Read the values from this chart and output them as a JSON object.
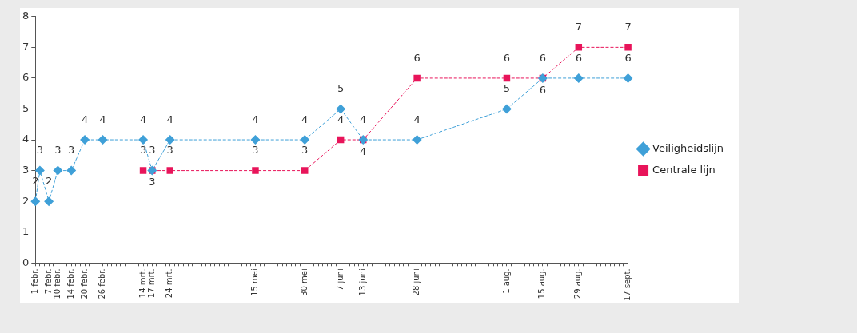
{
  "chart_data": {
    "type": "line",
    "categories": [
      "1 febr.",
      null,
      null,
      "7 febr.",
      null,
      "10 febr.",
      null,
      null,
      "14 febr.",
      null,
      null,
      "20 febr.",
      null,
      null,
      null,
      "26 febr.",
      null,
      null,
      null,
      null,
      null,
      null,
      null,
      null,
      "14 mrt.",
      null,
      "17 mrt.",
      null,
      null,
      null,
      "24 mrt.",
      null,
      null,
      null,
      null,
      null,
      null,
      null,
      null,
      null,
      null,
      null,
      null,
      null,
      null,
      null,
      null,
      null,
      null,
      "15 mei",
      null,
      null,
      null,
      null,
      null,
      null,
      null,
      null,
      null,
      null,
      "30 mei",
      null,
      null,
      null,
      null,
      null,
      null,
      null,
      "7 juni",
      null,
      null,
      null,
      null,
      "13 juni",
      null,
      null,
      null,
      null,
      null,
      null,
      null,
      null,
      null,
      null,
      null,
      "28 juni",
      null,
      null,
      null,
      null,
      null,
      null,
      null,
      null,
      null,
      null,
      null,
      null,
      null,
      null,
      null,
      null,
      null,
      null,
      null,
      "1 aug.",
      null,
      null,
      null,
      null,
      null,
      null,
      null,
      "15 aug.",
      null,
      null,
      null,
      null,
      null,
      null,
      null,
      "29 aug.",
      null,
      null,
      null,
      null,
      null,
      null,
      null,
      null,
      null,
      null,
      "17 sept."
    ],
    "series": [
      {
        "name": "Veiligheidslijn",
        "color": "#3fa0d8",
        "marker": "diamond",
        "line_style": "dashed",
        "values": [
          2,
          3,
          null,
          2,
          null,
          3,
          null,
          null,
          3,
          null,
          null,
          4,
          null,
          null,
          null,
          4,
          null,
          null,
          null,
          null,
          null,
          null,
          null,
          null,
          4,
          null,
          3,
          null,
          null,
          null,
          4,
          null,
          null,
          null,
          null,
          null,
          null,
          null,
          null,
          null,
          null,
          null,
          null,
          null,
          null,
          null,
          null,
          null,
          null,
          4,
          null,
          null,
          null,
          null,
          null,
          null,
          null,
          null,
          null,
          null,
          4,
          null,
          null,
          null,
          null,
          null,
          null,
          null,
          5,
          null,
          null,
          null,
          null,
          4,
          null,
          null,
          null,
          null,
          null,
          null,
          null,
          null,
          null,
          null,
          null,
          4,
          null,
          null,
          null,
          null,
          null,
          null,
          null,
          null,
          null,
          null,
          null,
          null,
          null,
          null,
          null,
          null,
          null,
          null,
          null,
          5,
          null,
          null,
          null,
          null,
          null,
          null,
          null,
          6,
          null,
          null,
          null,
          null,
          null,
          null,
          null,
          6,
          null,
          null,
          null,
          null,
          null,
          null,
          null,
          null,
          null,
          null,
          6
        ]
      },
      {
        "name": "Centrale lijn",
        "color": "#e8145a",
        "marker": "square",
        "line_style": "dashed",
        "values": [
          null,
          null,
          null,
          null,
          null,
          null,
          null,
          null,
          null,
          null,
          null,
          null,
          null,
          null,
          null,
          null,
          null,
          null,
          null,
          null,
          null,
          null,
          null,
          null,
          3,
          null,
          3,
          null,
          null,
          null,
          3,
          null,
          null,
          null,
          null,
          null,
          null,
          null,
          null,
          null,
          null,
          null,
          null,
          null,
          null,
          null,
          null,
          null,
          null,
          3,
          null,
          null,
          null,
          null,
          null,
          null,
          null,
          null,
          null,
          null,
          3,
          null,
          null,
          null,
          null,
          null,
          null,
          null,
          4,
          null,
          null,
          null,
          null,
          4,
          null,
          null,
          null,
          null,
          null,
          null,
          null,
          null,
          null,
          null,
          null,
          6,
          null,
          null,
          null,
          null,
          null,
          null,
          null,
          null,
          null,
          null,
          null,
          null,
          null,
          null,
          null,
          null,
          null,
          null,
          null,
          6,
          null,
          null,
          null,
          null,
          null,
          null,
          null,
          6,
          null,
          null,
          null,
          null,
          null,
          null,
          null,
          7,
          null,
          null,
          null,
          null,
          null,
          null,
          null,
          null,
          null,
          null,
          7
        ]
      }
    ],
    "ylim": [
      0,
      8
    ],
    "yticks": [
      0,
      1,
      2,
      3,
      4,
      5,
      6,
      7,
      8
    ],
    "grid": false,
    "legend": "right",
    "data_labels": true
  }
}
